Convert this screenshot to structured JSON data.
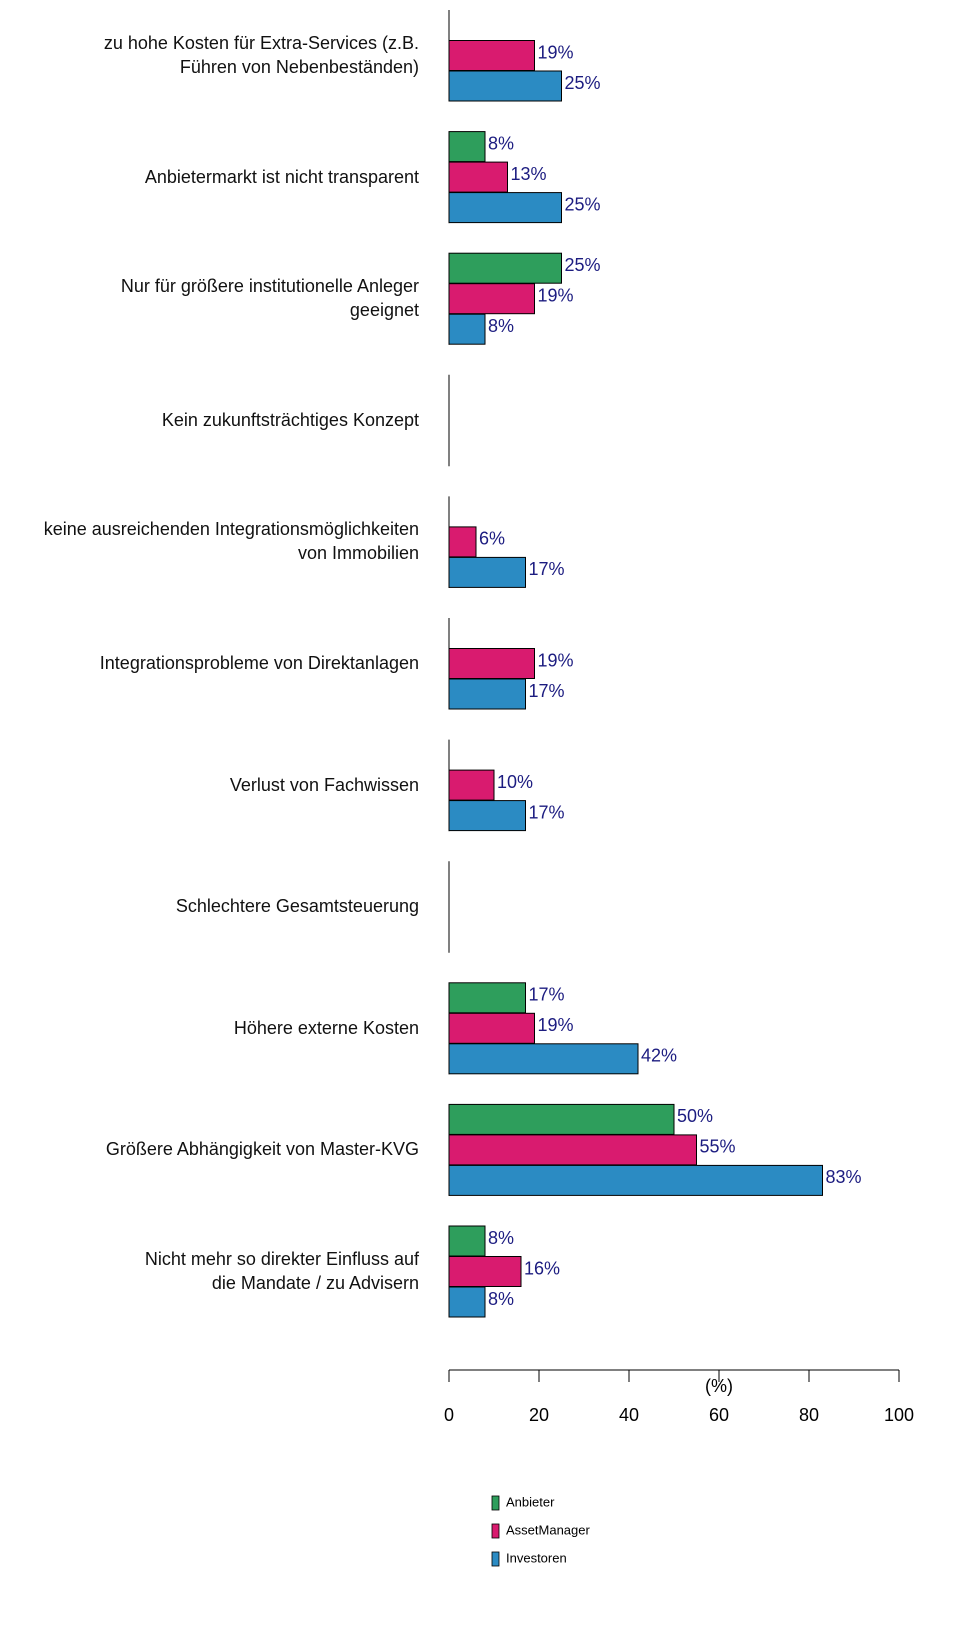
{
  "chart_data": {
    "type": "bar",
    "orientation": "horizontal",
    "categories": [
      "zu hohe Kosten für Extra-Services (z.B.\nFühren von Nebenbeständen)",
      "Anbietermarkt ist nicht transparent",
      "Nur für größere institutionelle Anleger \ngeeignet",
      "Kein zukunftsträchtiges Konzept",
      "keine ausreichenden Integrationsmöglichkeiten \nvon Immobilien",
      "Integrationsprobleme von Direktanlagen",
      "Verlust von Fachwissen",
      "Schlechtere Gesamtsteuerung",
      "Höhere externe Kosten",
      "Größere Abhängigkeit von Master-KVG",
      "Nicht mehr so direkter Einfluss auf \ndie Mandate / zu Advisern"
    ],
    "series": [
      {
        "name": "Anbieter",
        "color": "#2e9e5c",
        "values": [
          null,
          8,
          25,
          null,
          null,
          null,
          null,
          null,
          17,
          50,
          8
        ],
        "value_labels": [
          null,
          "8%",
          "25%",
          null,
          null,
          null,
          null,
          null,
          "17%",
          "50%",
          "8%"
        ]
      },
      {
        "name": "AssetManager",
        "color": "#d91b6f",
        "values": [
          19,
          13,
          19,
          null,
          6,
          19,
          10,
          null,
          19,
          55,
          16
        ],
        "value_labels": [
          "19%",
          "13%",
          "19%",
          null,
          "6%",
          "19%",
          "10%",
          null,
          "19%",
          "55%",
          "16%"
        ]
      },
      {
        "name": "Investoren",
        "color": "#2b8bc3",
        "values": [
          25,
          25,
          8,
          null,
          17,
          17,
          17,
          null,
          42,
          83,
          8
        ],
        "value_labels": [
          "25%",
          "25%",
          "8%",
          null,
          "17%",
          "17%",
          "17%",
          null,
          "42%",
          "83%",
          "8%"
        ]
      }
    ],
    "x_label": "(%)",
    "xlim": [
      0,
      100
    ],
    "xticks": [
      0,
      20,
      40,
      60,
      80,
      100
    ]
  }
}
